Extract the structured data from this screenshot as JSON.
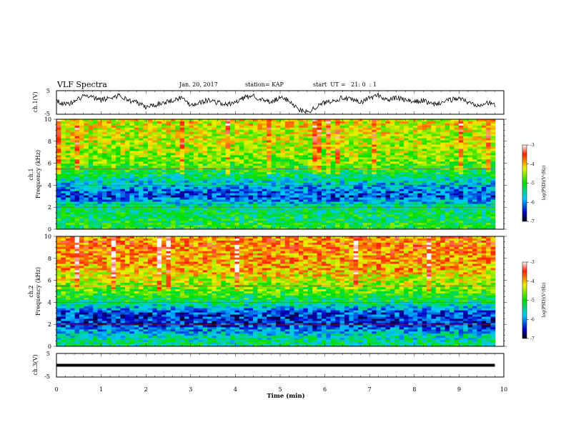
{
  "header": {
    "title": "VLF Spectra",
    "date": "Jan. 20, 2017",
    "station": "station= KAP",
    "start": "start  UT =   21: 0  : 1"
  },
  "panels": {
    "ch1_wave_label": "ch.1(V)",
    "ch1_spec_label": "ch.1",
    "ch2_spec_label": "ch.2",
    "ch3_wave_label": "ch.3(V)",
    "freq_label": "Frequency  (kHz)",
    "x_label": "Time  (min)",
    "colorbar_label": "log(PSD)(V²/Hz)"
  },
  "chart_data": [
    {
      "type": "line",
      "name": "ch1-waveform",
      "ylabel": "ch.1(V)",
      "ylim": [
        -5,
        5
      ],
      "xlim": [
        0,
        10
      ],
      "yticks": [
        "5",
        "-5"
      ],
      "x": [
        0,
        0.2,
        0.4,
        0.6,
        0.8,
        1.0,
        1.2,
        1.4,
        1.6,
        1.8,
        2.0,
        2.2,
        2.4,
        2.6,
        2.8,
        3.0,
        3.2,
        3.4,
        3.6,
        3.8,
        4.0,
        4.2,
        4.4,
        4.6,
        4.8,
        5.0,
        5.2,
        5.4,
        5.6,
        5.8,
        6.0,
        6.2,
        6.4,
        6.6,
        6.8,
        7.0,
        7.2,
        7.4,
        7.6,
        7.8,
        8.0,
        8.2,
        8.4,
        8.6,
        8.8,
        9.0,
        9.2,
        9.4,
        9.6,
        9.8
      ],
      "y": [
        1,
        -1,
        0,
        3,
        2,
        1,
        2,
        3,
        1,
        0,
        -2,
        -1,
        0,
        1,
        2,
        -1,
        0,
        1,
        0,
        -1,
        0,
        2,
        3,
        1,
        0,
        2,
        1,
        -3,
        -4,
        -2,
        0,
        1,
        2,
        1,
        0,
        2,
        3,
        1,
        2,
        1,
        0,
        1,
        -1,
        0,
        1,
        2,
        0,
        -1,
        0,
        -1
      ]
    },
    {
      "type": "heatmap",
      "name": "ch1-spectrogram",
      "ylabel": "Frequency  (kHz)",
      "ylim": [
        0,
        10
      ],
      "xlim": [
        0,
        10
      ],
      "yticks": [
        "0",
        "2",
        "4",
        "6",
        "8",
        "10"
      ],
      "colorbar": {
        "range": [
          -7,
          -3
        ],
        "ticks": [
          "-3",
          "-4",
          "-5",
          "-6",
          "-7"
        ],
        "label": "log(PSD)(V²/Hz)"
      },
      "freq_profile_khz": [
        0,
        1,
        2,
        3,
        4,
        5,
        6,
        7,
        8,
        9,
        10
      ],
      "log_psd_profile": [
        -5.0,
        -5.2,
        -5.4,
        -6.3,
        -5.8,
        -5.2,
        -4.7,
        -4.5,
        -4.4,
        -4.3,
        -4.2
      ]
    },
    {
      "type": "heatmap",
      "name": "ch2-spectrogram",
      "ylabel": "Frequency  (kHz)",
      "ylim": [
        0,
        10
      ],
      "xlim": [
        0,
        10
      ],
      "yticks": [
        "0",
        "2",
        "4",
        "6",
        "8",
        "10"
      ],
      "colorbar": {
        "range": [
          -7,
          -3
        ],
        "ticks": [
          "-3",
          "-4",
          "-5",
          "-6",
          "-7"
        ],
        "label": "log(PSD)(V²/Hz)"
      },
      "freq_profile_khz": [
        0,
        1,
        2,
        3,
        4,
        5,
        6,
        7,
        8,
        9,
        10
      ],
      "log_psd_profile": [
        -5.3,
        -5.6,
        -6.4,
        -6.3,
        -5.3,
        -4.8,
        -4.4,
        -4.0,
        -3.9,
        -3.8,
        -3.8
      ]
    },
    {
      "type": "line",
      "name": "ch3-waveform",
      "ylabel": "ch.3(V)",
      "ylim": [
        -5,
        5
      ],
      "xlim": [
        0,
        10
      ],
      "yticks": [
        "5",
        "-5"
      ],
      "x": [
        0,
        9.8
      ],
      "y": [
        0,
        0
      ]
    }
  ],
  "x_axis": {
    "label": "Time  (min)",
    "ticks": [
      "0",
      "1",
      "2",
      "3",
      "4",
      "5",
      "6",
      "7",
      "8",
      "9",
      "10"
    ]
  }
}
